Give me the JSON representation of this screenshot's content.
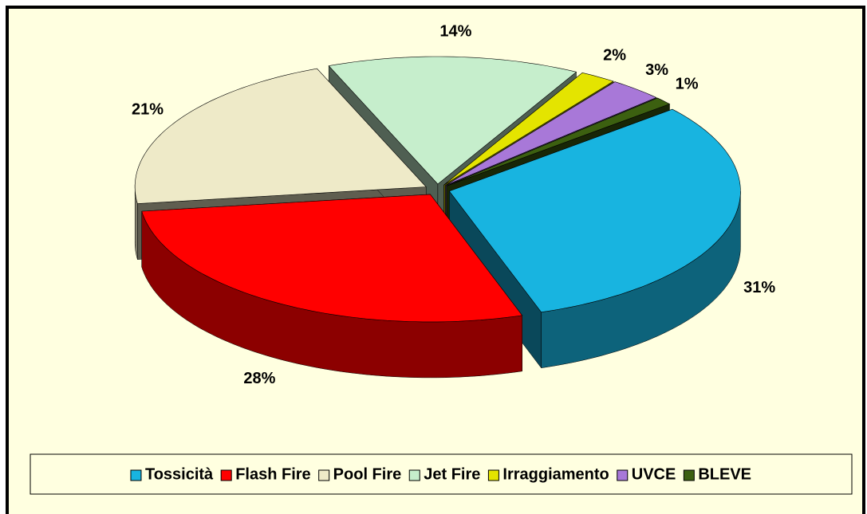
{
  "chart_data": {
    "type": "pie3d",
    "categories": [
      "Tossicità",
      "Flash Fire",
      "Pool Fire",
      "Jet Fire",
      "Irraggiamento",
      "UVCE",
      "BLEVE"
    ],
    "values": [
      31,
      28,
      21,
      14,
      2,
      3,
      1
    ],
    "value_labels": [
      "31%",
      "28%",
      "21%",
      "14%",
      "2%",
      "3%",
      "1%"
    ],
    "colors": [
      "#18b4e0",
      "#ff0000",
      "#eeeac8",
      "#c6eecc",
      "#e4e400",
      "#a878d8",
      "#3c6010"
    ],
    "legend": "bottom"
  }
}
